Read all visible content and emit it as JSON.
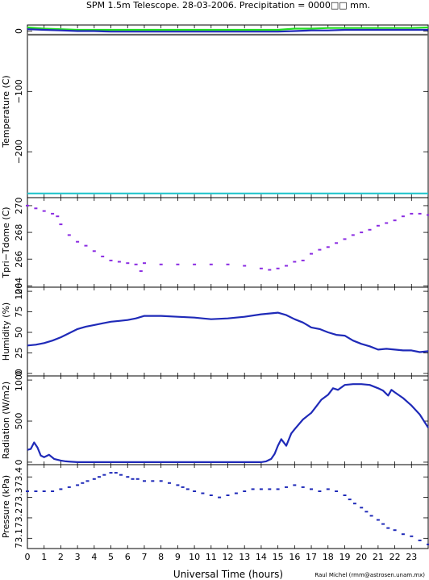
{
  "title": "SPM 1.5m Telescope. 28-03-2006. Precipitation = 0000□□ mm.",
  "xlabel": "Universal Time (hours)",
  "credit": "Raul Michel (rmm@astrosen.unam.mx)",
  "x_ticks": [
    0,
    1,
    2,
    3,
    4,
    5,
    6,
    7,
    8,
    9,
    10,
    11,
    12,
    13,
    14,
    15,
    16,
    17,
    18,
    19,
    20,
    21,
    22,
    23
  ],
  "chart_data": [
    {
      "type": "line",
      "ylabel": "Temperature (C)",
      "xlim": [
        0,
        24
      ],
      "ylim": [
        -276,
        10
      ],
      "y_ticks": [
        {
          "v": 0,
          "t": "0"
        },
        {
          "v": -100,
          "t": "−100"
        },
        {
          "v": -200,
          "t": "−200"
        }
      ],
      "series": [
        {
          "color": "#22dd22",
          "x": [
            0,
            1,
            2,
            3,
            4,
            5,
            6,
            7,
            8,
            9,
            10,
            11,
            12,
            13,
            14,
            15,
            16,
            17,
            18,
            19,
            20,
            21,
            22,
            23,
            24
          ],
          "y": [
            6,
            4,
            3,
            2,
            2,
            2,
            2,
            2,
            2,
            2,
            2,
            2,
            2,
            2,
            2,
            2,
            4,
            4,
            5,
            5,
            5,
            5,
            5,
            5,
            6
          ]
        },
        {
          "color": "#1f2ab8",
          "x": [
            0,
            1,
            2,
            3,
            4,
            5,
            6,
            7,
            8,
            9,
            10,
            11,
            12,
            13,
            14,
            15,
            16,
            17,
            18,
            19,
            20,
            21,
            22,
            23,
            24
          ],
          "y": [
            3,
            2,
            1,
            0,
            0,
            -1,
            -1,
            -1,
            -1,
            -1,
            -1,
            -1,
            -1,
            -1,
            -1,
            -1,
            0,
            1,
            1,
            2,
            2,
            2,
            2,
            2,
            2
          ]
        },
        {
          "color": "#666666",
          "x": [
            0,
            24
          ],
          "y": [
            -6,
            -6
          ]
        },
        {
          "color": "#22c5cc",
          "x": [
            0,
            24
          ],
          "y": [
            -269,
            -269
          ]
        }
      ]
    },
    {
      "type": "scatter",
      "ylabel": "Tpri−Tdome (C)",
      "xlim": [
        0,
        24
      ],
      "ylim": [
        263.9,
        270.6
      ],
      "y_ticks": [
        {
          "v": 264,
          "t": "264"
        },
        {
          "v": 266,
          "t": "266"
        },
        {
          "v": 268,
          "t": "268"
        },
        {
          "v": 270,
          "t": "270"
        }
      ],
      "series": [
        {
          "color": "#8a2be2",
          "x": [
            0,
            0.5,
            1,
            1.5,
            1.8,
            2,
            2.5,
            3,
            3.5,
            4,
            4.5,
            5,
            5.5,
            6,
            6.5,
            6.8,
            7,
            8,
            9,
            10,
            11,
            12,
            13,
            14,
            14.5,
            15,
            15.5,
            16,
            16.5,
            17,
            17.5,
            18,
            18.5,
            19,
            19.5,
            20,
            20.5,
            21,
            21.5,
            22,
            22.5,
            23,
            23.5,
            24
          ],
          "y": [
            270,
            269.8,
            269.6,
            269.4,
            269.2,
            268.6,
            267.8,
            267.3,
            267,
            266.6,
            266.2,
            265.9,
            265.8,
            265.7,
            265.6,
            265.1,
            265.7,
            265.6,
            265.6,
            265.6,
            265.6,
            265.6,
            265.5,
            265.3,
            265.2,
            265.3,
            265.5,
            265.8,
            265.9,
            266.4,
            266.7,
            266.9,
            267.2,
            267.5,
            267.8,
            268,
            268.2,
            268.5,
            268.7,
            268.9,
            269.2,
            269.4,
            269.4,
            269.3
          ]
        }
      ]
    },
    {
      "type": "line",
      "ylabel": "Humidity (%)",
      "xlim": [
        0,
        24
      ],
      "ylim": [
        -3,
        105
      ],
      "y_ticks": [
        {
          "v": 0,
          "t": "0"
        },
        {
          "v": 25,
          "t": "25"
        },
        {
          "v": 50,
          "t": "50"
        },
        {
          "v": 75,
          "t": "75"
        },
        {
          "v": 100,
          "t": "100"
        }
      ],
      "series": [
        {
          "color": "#1f2ab8",
          "x": [
            0,
            0.5,
            1,
            1.5,
            2,
            2.5,
            3,
            3.5,
            4,
            4.5,
            5,
            5.5,
            6,
            6.5,
            7,
            7.5,
            8,
            9,
            10,
            11,
            12,
            13,
            14,
            14.5,
            15,
            15.5,
            16,
            16.5,
            17,
            17.5,
            18,
            18.5,
            19,
            19.5,
            20,
            20.5,
            21,
            21.5,
            22,
            22.5,
            23,
            23.5,
            24
          ],
          "y": [
            34,
            35,
            37,
            40,
            44,
            49,
            54,
            57,
            59,
            61,
            63,
            64,
            65,
            67,
            70,
            70,
            70,
            69,
            68,
            66,
            67,
            69,
            72,
            73,
            74,
            71,
            66,
            62,
            56,
            54,
            50,
            47,
            46,
            40,
            36,
            33,
            29,
            30,
            29,
            28,
            28,
            26,
            27
          ]
        }
      ]
    },
    {
      "type": "line",
      "ylabel": "Radiation (W/m2)",
      "xlim": [
        0,
        24
      ],
      "ylim": [
        -30,
        1050
      ],
      "y_ticks": [
        {
          "v": 0,
          "t": "0"
        },
        {
          "v": 500,
          "t": "500"
        },
        {
          "v": 1000,
          "t": "1000"
        }
      ],
      "series": [
        {
          "color": "#1f2ab8",
          "x": [
            0,
            0.2,
            0.4,
            0.6,
            0.8,
            1,
            1.3,
            1.6,
            2,
            2.3,
            2.6,
            3,
            5,
            8,
            11,
            14,
            14.3,
            14.6,
            14.8,
            15,
            15.2,
            15.5,
            15.8,
            16,
            16.5,
            17,
            17.3,
            17.6,
            18,
            18.3,
            18.6,
            19,
            19.5,
            20,
            20.5,
            21,
            21.3,
            21.6,
            21.8,
            22,
            22.5,
            23,
            23.5,
            24
          ],
          "y": [
            150,
            160,
            240,
            180,
            80,
            60,
            90,
            40,
            20,
            10,
            5,
            0,
            0,
            0,
            0,
            0,
            10,
            40,
            100,
            200,
            280,
            200,
            350,
            400,
            520,
            600,
            680,
            760,
            820,
            900,
            880,
            940,
            950,
            950,
            940,
            900,
            870,
            810,
            880,
            850,
            780,
            690,
            580,
            420
          ]
        }
      ]
    },
    {
      "type": "scatter",
      "ylabel": "Pressure (kPa)",
      "xlim": [
        0,
        24
      ],
      "ylim": [
        73.05,
        73.46
      ],
      "y_ticks": [
        {
          "v": 73.1,
          "t": "73.1"
        },
        {
          "v": 73.2,
          "t": "73.2"
        },
        {
          "v": 73.3,
          "t": "73.3"
        },
        {
          "v": 73.4,
          "t": "73.4"
        }
      ],
      "series": [
        {
          "color": "#1f2ab8",
          "x": [
            0,
            0.5,
            1,
            1.5,
            2,
            2.5,
            3,
            3.3,
            3.6,
            4,
            4.3,
            4.6,
            5,
            5.3,
            5.6,
            6,
            6.3,
            6.6,
            7,
            7.5,
            8,
            8.5,
            9,
            9.3,
            9.6,
            10,
            10.5,
            11,
            11.5,
            12,
            12.5,
            13,
            13.5,
            14,
            14.5,
            15,
            15.5,
            16,
            16.5,
            17,
            17.5,
            18,
            18.5,
            19,
            19.3,
            19.6,
            20,
            20.3,
            20.6,
            21,
            21.3,
            21.6,
            22,
            22.5,
            23,
            23.5,
            24
          ],
          "y": [
            73.33,
            73.33,
            73.33,
            73.33,
            73.34,
            73.35,
            73.36,
            73.37,
            73.38,
            73.39,
            73.4,
            73.41,
            73.42,
            73.42,
            73.41,
            73.4,
            73.39,
            73.39,
            73.38,
            73.38,
            73.38,
            73.37,
            73.36,
            73.35,
            73.34,
            73.33,
            73.32,
            73.31,
            73.3,
            73.31,
            73.32,
            73.33,
            73.34,
            73.34,
            73.34,
            73.34,
            73.35,
            73.36,
            73.35,
            73.34,
            73.33,
            73.34,
            73.33,
            73.31,
            73.29,
            73.27,
            73.25,
            73.23,
            73.21,
            73.19,
            73.17,
            73.15,
            73.14,
            73.12,
            73.11,
            73.09,
            73.07
          ]
        }
      ]
    }
  ]
}
